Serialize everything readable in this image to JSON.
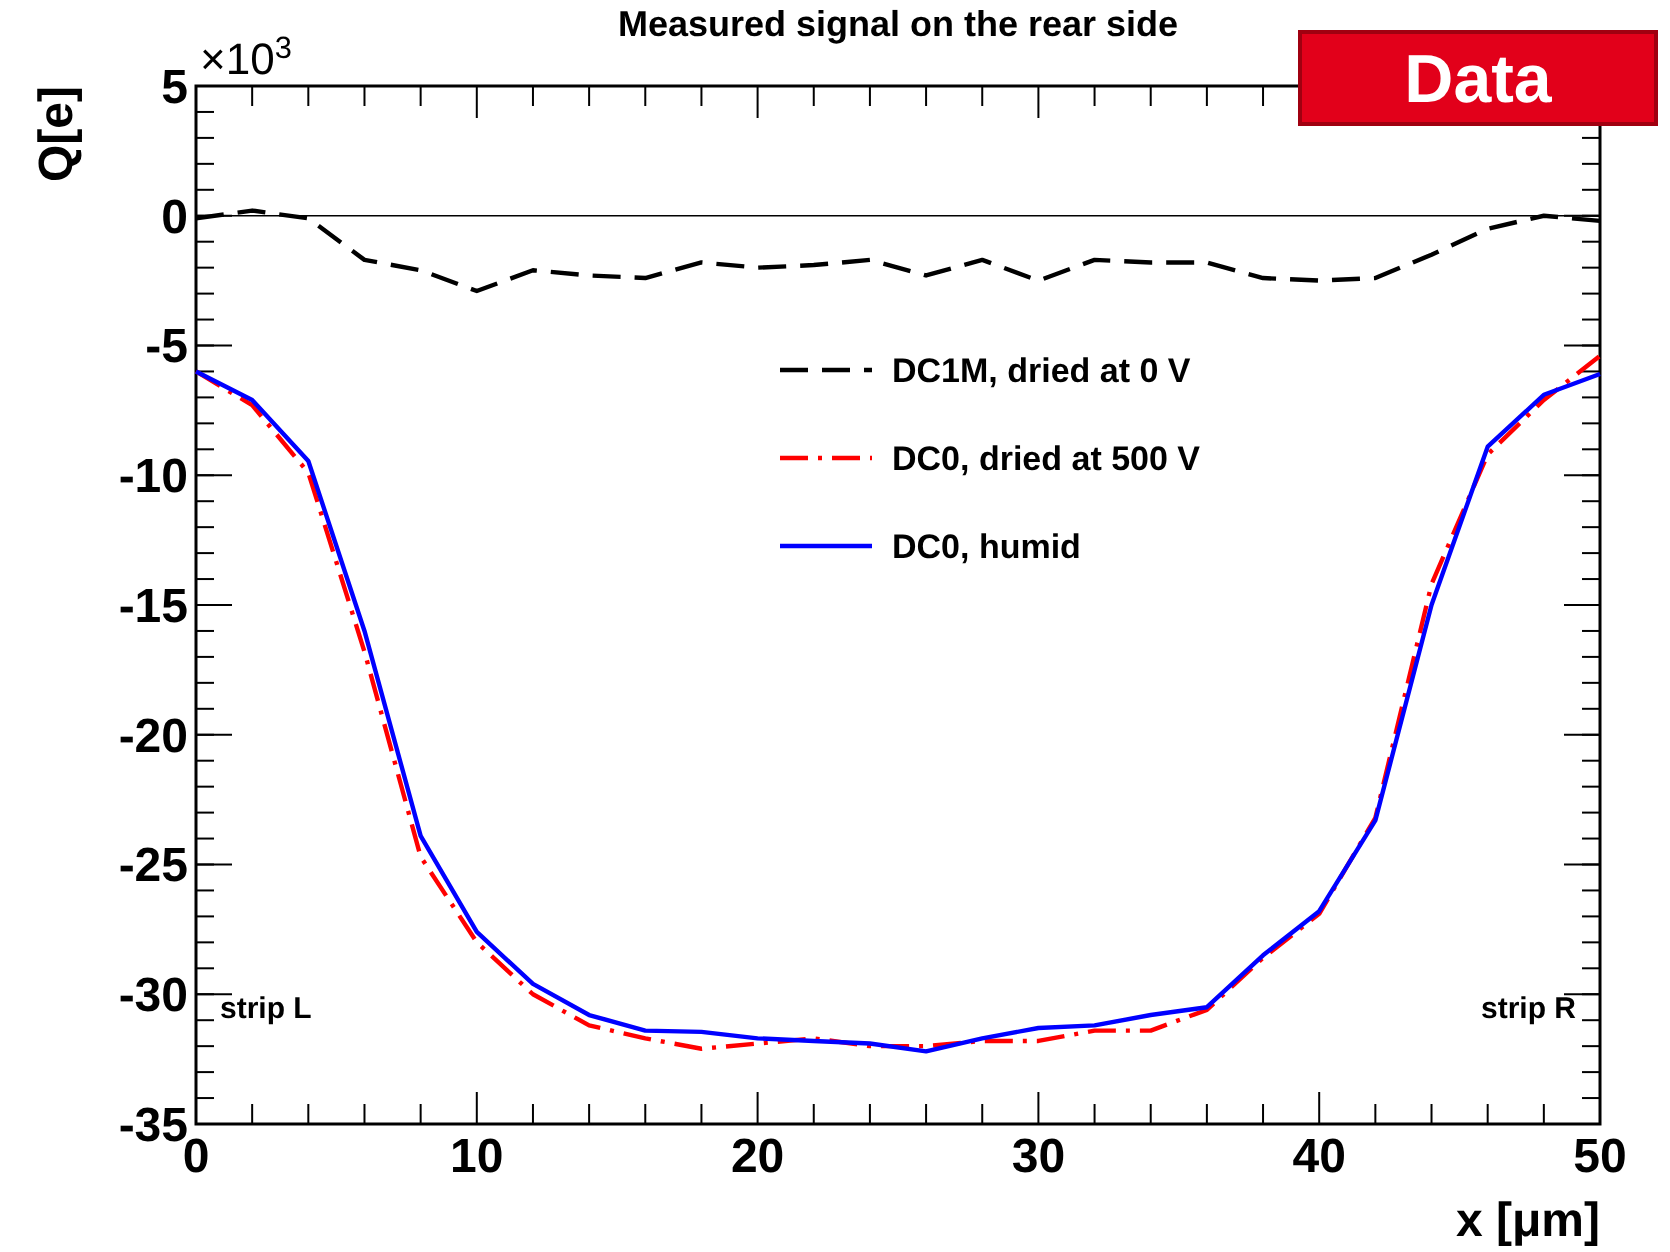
{
  "chart_data": {
    "type": "line",
    "title": "Measured signal on the rear side",
    "xlabel": "x [μm]",
    "ylabel": "Q[e]",
    "annotations": [
      "×10$^{3}$",
      "strip L",
      "strip R",
      "Data"
    ],
    "x": [
      0,
      2,
      4,
      6,
      8,
      10,
      12,
      14,
      16,
      18,
      20,
      22,
      24,
      26,
      28,
      30,
      32,
      34,
      36,
      38,
      40,
      42,
      44,
      46,
      48,
      50
    ],
    "series": [
      {
        "name": "DC1M, dried at 0 V",
        "color": "#000000",
        "line_style": "dashed",
        "values": [
          -0.1,
          0.2,
          -0.1,
          -1.7,
          -2.1,
          -2.9,
          -2.1,
          -2.3,
          -2.4,
          -1.8,
          -2.0,
          -1.9,
          -1.7,
          -2.3,
          -1.7,
          -2.5,
          -1.7,
          -1.8,
          -1.8,
          -2.4,
          -2.5,
          -2.4,
          -1.5,
          -0.5,
          0.0,
          -0.2
        ]
      },
      {
        "name": "DC0, dried at 500 V",
        "color": "#ff0000",
        "line_style": "dashdot",
        "values": [
          -6.0,
          -7.3,
          -9.9,
          -16.8,
          -24.7,
          -28.0,
          -30.0,
          -31.2,
          -31.7,
          -32.1,
          -31.9,
          -31.7,
          -32.0,
          -32.0,
          -31.8,
          -31.8,
          -31.4,
          -31.4,
          -30.6,
          -28.6,
          -26.9,
          -23.2,
          -14.2,
          -9.2,
          -7.1,
          -5.4
        ]
      },
      {
        "name": "DC0, humid",
        "color": "#0000ff",
        "line_style": "solid",
        "values": [
          -6.0,
          -7.1,
          -9.45,
          -16.0,
          -23.9,
          -27.6,
          -29.6,
          -30.8,
          -31.4,
          -31.45,
          -31.7,
          -31.8,
          -31.9,
          -32.2,
          -31.7,
          -31.3,
          -31.2,
          -30.8,
          -30.5,
          -28.5,
          -26.8,
          -23.3,
          -15.0,
          -8.9,
          -6.9,
          -6.1
        ]
      }
    ],
    "xlim": [
      0,
      50
    ],
    "xticks": [
      0,
      {
        "value": 2,
        "label": null
      },
      {
        "value": 4,
        "label": null
      },
      {
        "value": 6,
        "label": null
      },
      {
        "value": 8,
        "label": null
      },
      10,
      {
        "value": 12,
        "label": null
      },
      {
        "value": 14,
        "label": null
      },
      {
        "value": 16,
        "label": null
      },
      {
        "value": 18,
        "label": null
      },
      20,
      {
        "value": 22,
        "label": null
      },
      {
        "value": 24,
        "label": null
      },
      {
        "value": 26,
        "label": null
      },
      {
        "value": 28,
        "label": null
      },
      30,
      {
        "value": 32,
        "label": null
      },
      {
        "value": 34,
        "label": null
      },
      {
        "value": 36,
        "label": null
      },
      {
        "value": 38,
        "label": null
      },
      40,
      {
        "value": 42,
        "label": null
      },
      {
        "value": 44,
        "label": null
      },
      {
        "value": 46,
        "label": null
      },
      {
        "value": 48,
        "label": null
      },
      50
    ],
    "ylim": [
      -35,
      5
    ],
    "yticks": [
      -35,
      -30,
      -25,
      -20,
      -15,
      -10,
      -5,
      0,
      5
    ],
    "ref_lines": [
      {
        "axis": "y",
        "value": 0,
        "color": "#000000"
      }
    ],
    "grid": false,
    "legend": "top",
    "marker": "none"
  }
}
